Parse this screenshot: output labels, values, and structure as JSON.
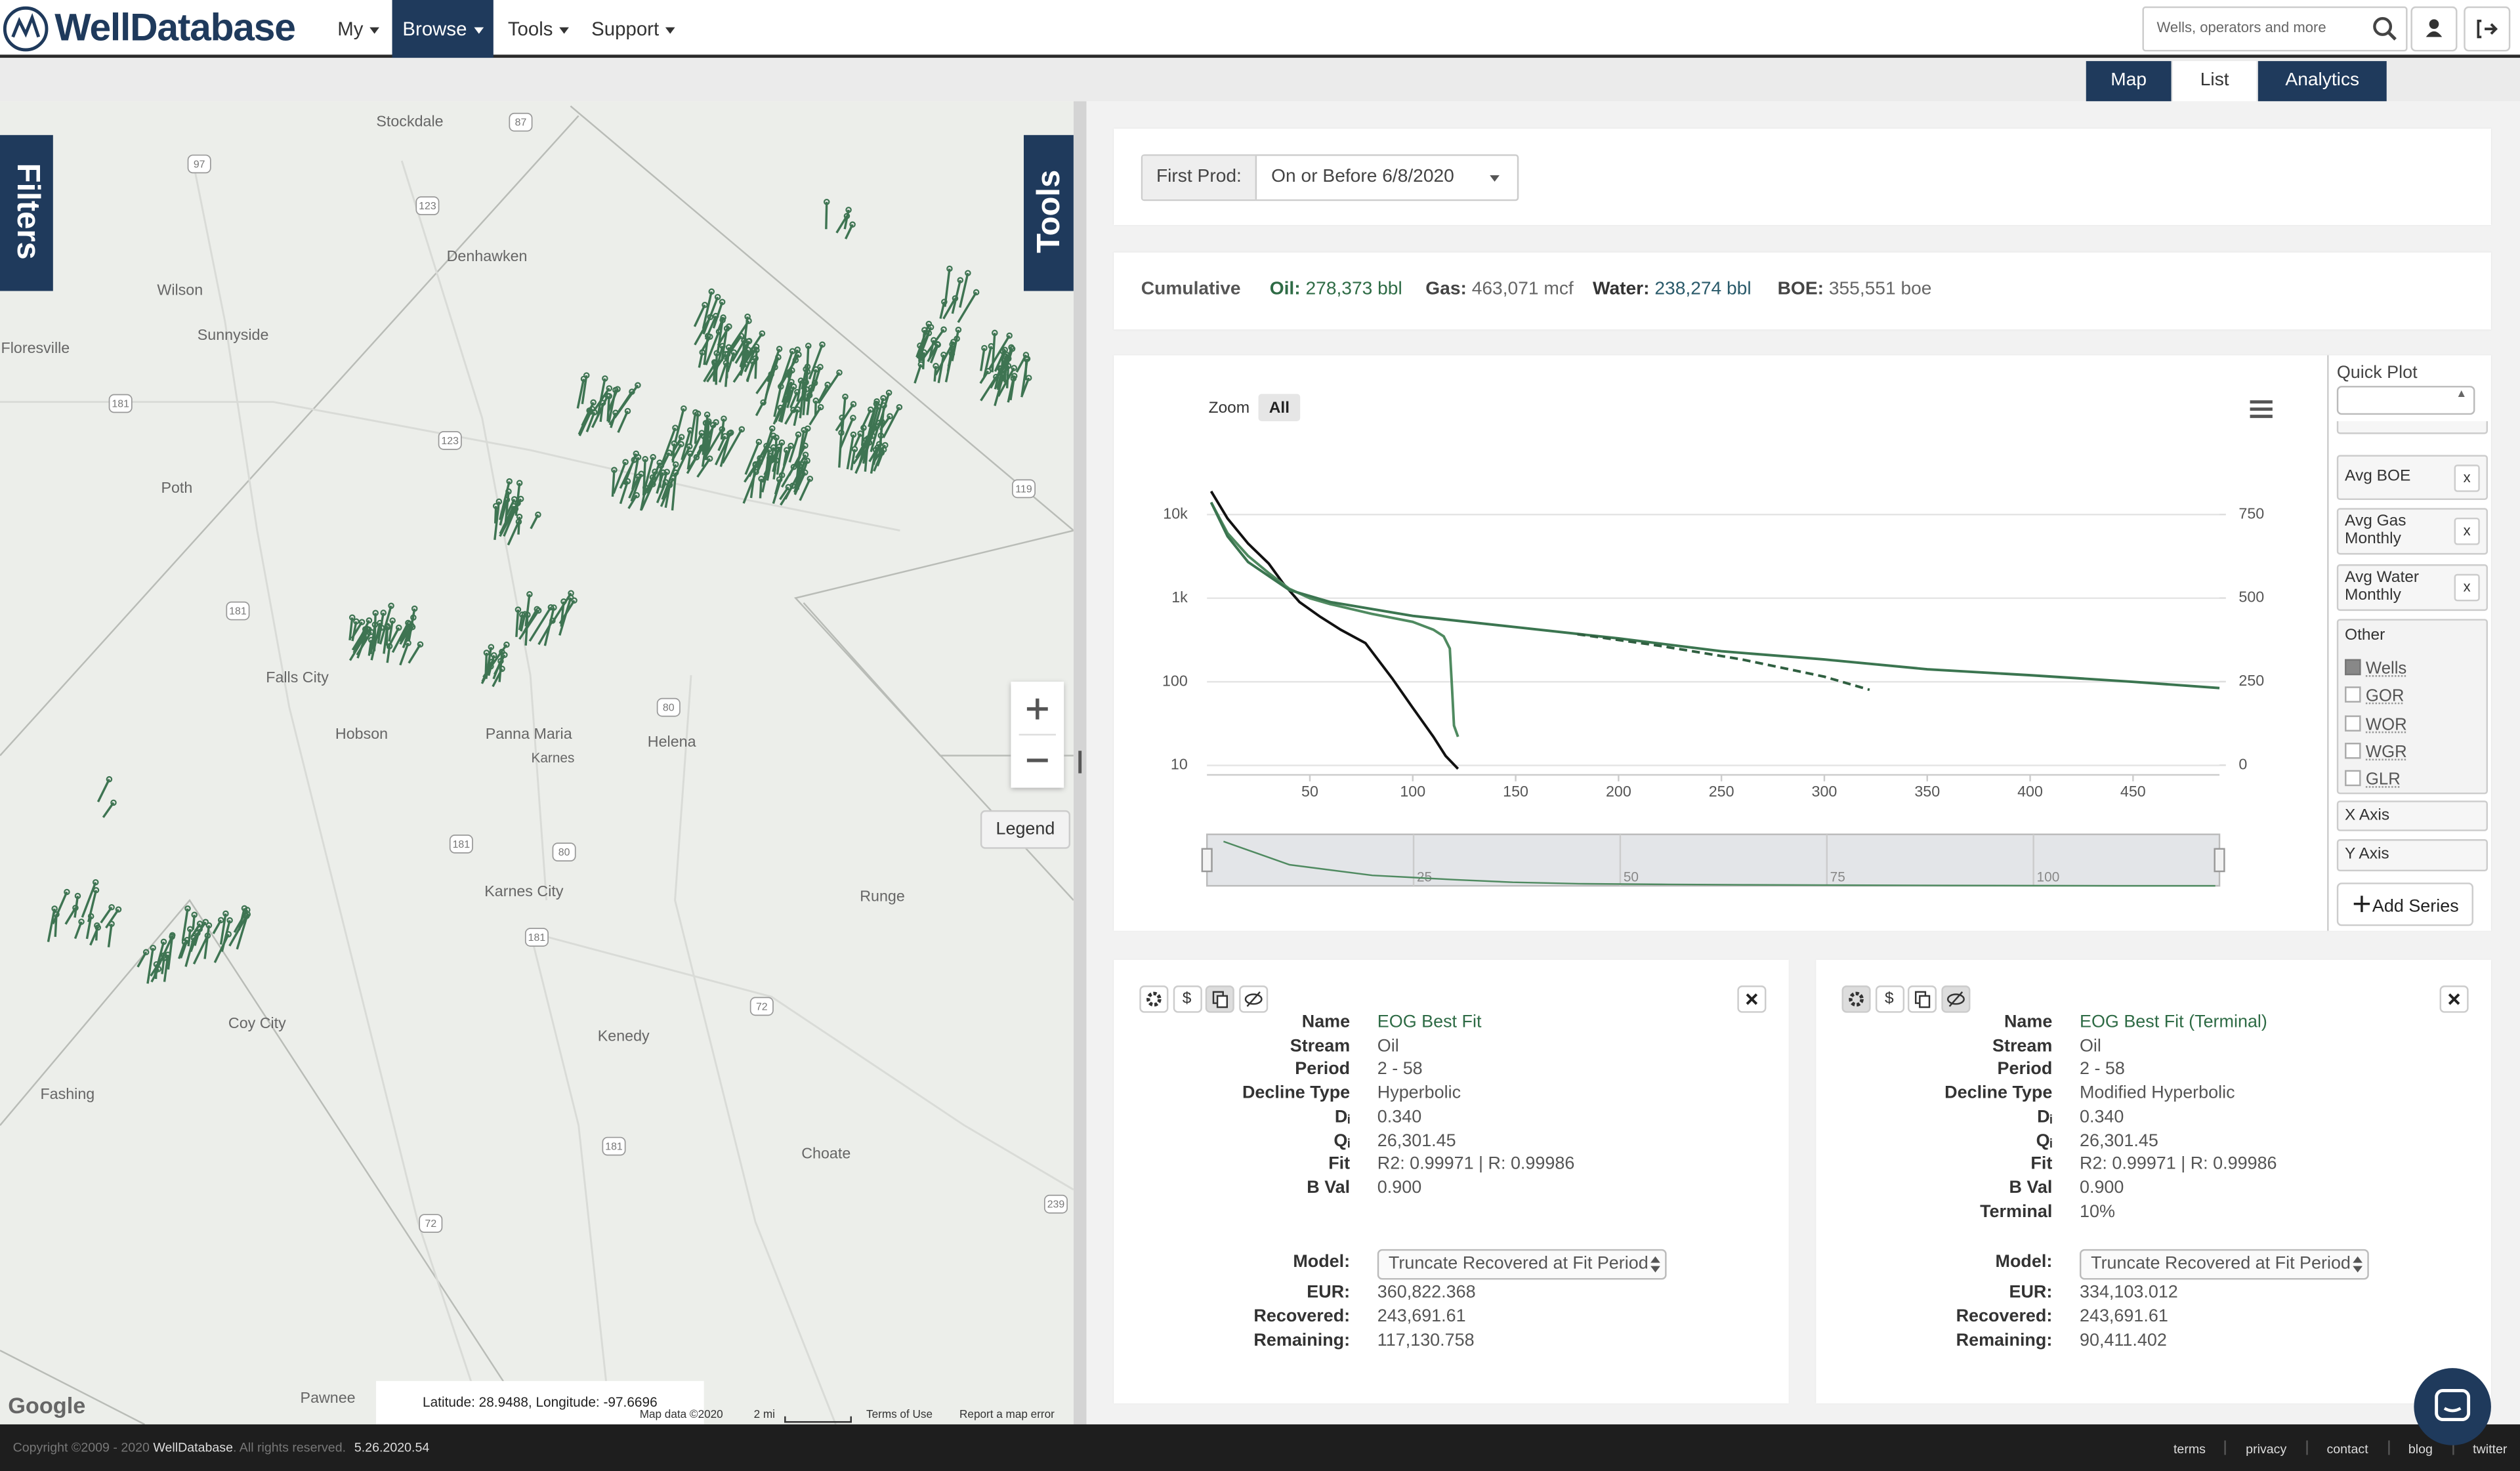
{
  "header": {
    "logo": "WellDatabase",
    "nav": [
      "My",
      "Browse",
      "Tools",
      "Support"
    ],
    "search_placeholder": "Wells, operators and more"
  },
  "view_tabs": [
    "Map",
    "List",
    "Analytics"
  ],
  "map": {
    "side_tabs": [
      "Filters",
      "Tools"
    ],
    "places": [
      "Stockdale",
      "Wilson",
      "Sunnyside",
      "Floresville",
      "Denhawken",
      "Poth",
      "Falls City",
      "Hobson",
      "Panna Maria",
      "Karnes",
      "Helena",
      "Karnes City",
      "Runge",
      "Coy City",
      "Kenedy",
      "Choate",
      "Fashing",
      "Pawnee"
    ],
    "shields": [
      "87",
      "97",
      "123",
      "181",
      "123",
      "119",
      "181",
      "80",
      "181",
      "80",
      "181",
      "72",
      "181",
      "239",
      "72"
    ],
    "legend": "Legend",
    "coordinates": "Latitude: 28.9488, Longitude: -97.6696",
    "google": "Google",
    "attribution": [
      "Map data ©2020",
      "2 mi",
      "Terms of Use",
      "Report a map error"
    ]
  },
  "filter": {
    "label": "First Prod:",
    "value": "On or Before 6/8/2020"
  },
  "cumulative": {
    "title": "Cumulative",
    "items": [
      {
        "label": "Oil:",
        "value": "278,373 bbl"
      },
      {
        "label": "Gas:",
        "value": "463,071 mcf"
      },
      {
        "label": "Water:",
        "value": "238,274 bbl"
      },
      {
        "label": "BOE:",
        "value": "355,551 boe"
      }
    ]
  },
  "chart_data": {
    "type": "line",
    "zoom_label": "Zoom",
    "zoom_button": "All",
    "xlim": [
      0,
      492
    ],
    "xticks": [
      50,
      100,
      150,
      200,
      250,
      300,
      350,
      400,
      450
    ],
    "yscale": "log",
    "ylim": [
      7.7,
      84000
    ],
    "yticks": [
      {
        "value": 10000,
        "label": "10k"
      },
      {
        "value": 1000,
        "label": "1k"
      },
      100,
      10
    ],
    "y2lim": [
      -29,
      981
    ],
    "y2ticks": [
      750,
      500,
      250,
      0
    ],
    "grid": true,
    "series": [
      {
        "color": "#111111",
        "x": [
          2,
          10,
          20,
          30,
          37,
          45,
          55,
          65,
          77,
          90,
          100,
          110,
          116,
          122
        ],
        "values": [
          19000,
          9000,
          4500,
          2600,
          1500,
          900,
          600,
          420,
          290,
          110,
          49,
          22,
          13,
          9.1
        ]
      },
      {
        "color": "#4f8a60",
        "x": [
          2,
          10,
          20,
          30,
          40,
          50,
          60,
          80,
          100,
          110,
          115,
          118,
          119,
          120,
          122
        ],
        "values": [
          14000,
          6000,
          3200,
          2000,
          1300,
          1000,
          850,
          650,
          520,
          420,
          350,
          250,
          90,
          30,
          22
        ]
      },
      {
        "color": "#3b7550",
        "x": [
          2,
          10,
          20,
          40,
          60,
          100,
          150,
          200,
          250,
          300,
          350,
          400,
          450,
          492
        ],
        "values": [
          14000,
          5500,
          2700,
          1250,
          900,
          615,
          450,
          330,
          232,
          185,
          141,
          120,
          100,
          84
        ]
      },
      {
        "color": "#2f5f40",
        "dashed": true,
        "x": [
          180,
          220,
          260,
          300,
          322
        ],
        "values": [
          370,
          270,
          185,
          115,
          80
        ]
      }
    ],
    "navigator": {
      "xlim": [
        0,
        122.5
      ],
      "xticks": [
        25,
        50,
        75,
        100
      ],
      "ylim": [
        0,
        22000
      ]
    }
  },
  "quick_plot": {
    "title": "Quick Plot",
    "series": [
      "Avg BOE",
      "Avg Gas Monthly",
      "Avg Water Monthly"
    ],
    "remove": "x",
    "group": "Other",
    "options": [
      {
        "label": "Wells",
        "checked": true
      },
      {
        "label": "GOR",
        "checked": false
      },
      {
        "label": "WOR",
        "checked": false
      },
      {
        "label": "WGR",
        "checked": false
      },
      {
        "label": "GLR",
        "checked": false
      }
    ],
    "axes": [
      "X Axis",
      "Y Axis"
    ],
    "add_button": "Add Series"
  },
  "fit_cards": [
    {
      "tool_label": "$",
      "fields": [
        {
          "label": "Name",
          "value": "EOG Best Fit"
        },
        {
          "label": "Stream",
          "value": "Oil"
        },
        {
          "label": "Period",
          "value": "2 - 58"
        },
        {
          "label": "Decline Type",
          "value": "Hyperbolic"
        },
        {
          "label": "Dᵢ",
          "value": "0.340"
        },
        {
          "label": "Qᵢ",
          "value": "26,301.45"
        },
        {
          "label": "Fit",
          "value": "R2: 0.99971 | R: 0.99986"
        },
        {
          "label": "B Val",
          "value": "0.900"
        }
      ],
      "model_label": "Model:",
      "model": "Truncate Recovered at Fit Period",
      "results": [
        {
          "label": "EUR:",
          "value": "360,822.368"
        },
        {
          "label": "Recovered:",
          "value": "243,691.61"
        },
        {
          "label": "Remaining:",
          "value": "117,130.758"
        }
      ]
    },
    {
      "tool_label": "$",
      "fields": [
        {
          "label": "Name",
          "value": "EOG Best Fit (Terminal)"
        },
        {
          "label": "Stream",
          "value": "Oil"
        },
        {
          "label": "Period",
          "value": "2 - 58"
        },
        {
          "label": "Decline Type",
          "value": "Modified Hyperbolic"
        },
        {
          "label": "Dᵢ",
          "value": "0.340"
        },
        {
          "label": "Qᵢ",
          "value": "26,301.45"
        },
        {
          "label": "Fit",
          "value": "R2: 0.99971 | R: 0.99986"
        },
        {
          "label": "B Val",
          "value": "0.900"
        },
        {
          "label": "Terminal",
          "value": "10%"
        }
      ],
      "model_label": "Model:",
      "model": "Truncate Recovered at Fit Period",
      "results": [
        {
          "label": "EUR:",
          "value": "334,103.012"
        },
        {
          "label": "Recovered:",
          "value": "243,691.61"
        },
        {
          "label": "Remaining:",
          "value": "90,411.402"
        }
      ]
    }
  ],
  "footer": {
    "copyright": "Copyright ©2009 - 2020",
    "brand": "WellDatabase",
    "rights": ". All rights reserved.",
    "version": "5.26.2020.54",
    "links": [
      "terms",
      "privacy",
      "contact",
      "blog",
      "twitter"
    ]
  }
}
